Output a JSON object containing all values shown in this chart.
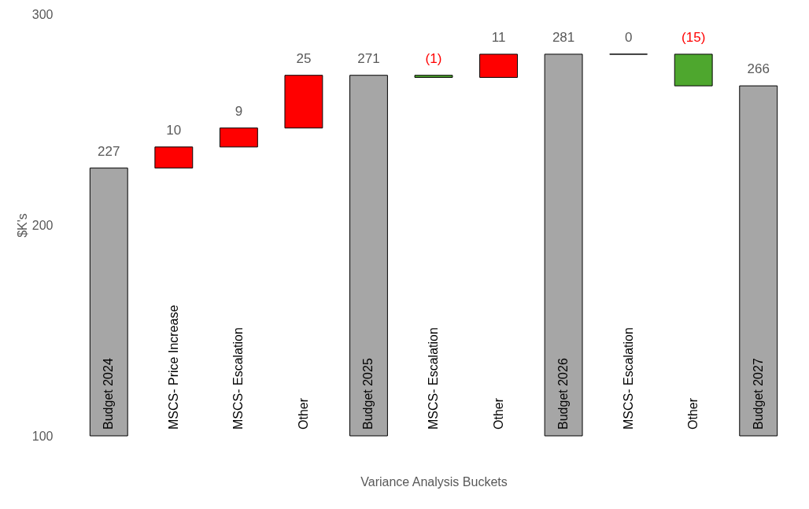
{
  "chart_data": {
    "type": "bar",
    "xlabel": "Variance Analysis Buckets",
    "ylabel": "$K's",
    "categories": [
      "Budget 2024",
      "MSCS- Price Increase",
      "MSCS- Escalation",
      "Other",
      "Budget 2025",
      "MSCS- Escalation",
      "Other",
      "Budget 2026",
      "MSCS- Escalation",
      "Other",
      "Budget 2027"
    ],
    "base": [
      100,
      227,
      237,
      246,
      100,
      271,
      270,
      100,
      281,
      281,
      100
    ],
    "values": [
      127,
      10,
      9,
      25,
      171,
      -1,
      11,
      181,
      0,
      -15,
      166
    ],
    "value_labels": [
      "227",
      "10",
      "9",
      "25",
      "271",
      "(1)",
      "11",
      "281",
      "0",
      "(15)",
      "266"
    ],
    "colors": [
      "#a6a6a6",
      "#ff0000",
      "#ff0000",
      "#ff0000",
      "#a6a6a6",
      "#4ea72e",
      "#ff0000",
      "#a6a6a6",
      "#000000",
      "#4ea72e",
      "#a6a6a6"
    ],
    "ylim": [
      100,
      300
    ],
    "yticks": [
      100,
      200,
      300
    ],
    "grid": false
  }
}
